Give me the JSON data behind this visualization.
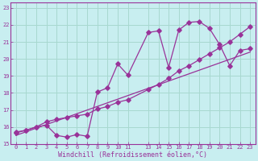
{
  "xlabel": "Windchill (Refroidissement éolien,°C)",
  "bg_color": "#c8eef0",
  "line_color": "#993399",
  "grid_color": "#a8d8d0",
  "xlim": [
    -0.5,
    23.5
  ],
  "ylim": [
    15,
    23.3
  ],
  "xticks": [
    0,
    1,
    2,
    3,
    4,
    5,
    6,
    7,
    8,
    9,
    10,
    11,
    13,
    14,
    15,
    16,
    17,
    18,
    19,
    20,
    21,
    22,
    23
  ],
  "yticks": [
    15,
    16,
    17,
    18,
    19,
    20,
    21,
    22,
    23
  ],
  "line1_x": [
    0,
    1,
    2,
    3,
    4,
    5,
    6,
    7,
    8,
    9,
    10,
    11,
    13,
    14,
    15,
    16,
    17,
    18,
    19,
    20,
    21,
    22,
    23
  ],
  "line1_y": [
    15.7,
    15.8,
    16.0,
    16.1,
    15.5,
    15.4,
    15.55,
    15.45,
    18.05,
    18.3,
    19.7,
    19.05,
    21.55,
    21.65,
    19.5,
    21.7,
    22.15,
    22.2,
    21.8,
    20.85,
    19.6,
    20.5,
    20.6
  ],
  "line2_x": [
    0,
    1,
    2,
    3,
    4,
    5,
    6,
    7,
    8,
    9,
    10,
    11,
    13,
    14,
    15,
    16,
    17,
    18,
    19,
    20,
    21,
    22,
    23
  ],
  "line2_y": [
    15.65,
    15.8,
    16.0,
    16.3,
    16.45,
    16.55,
    16.65,
    16.75,
    17.05,
    17.2,
    17.45,
    17.6,
    18.2,
    18.5,
    18.85,
    19.3,
    19.6,
    19.95,
    20.3,
    20.65,
    21.0,
    21.45,
    21.9
  ],
  "line3_x": [
    0,
    23
  ],
  "line3_y": [
    15.5,
    20.4
  ]
}
